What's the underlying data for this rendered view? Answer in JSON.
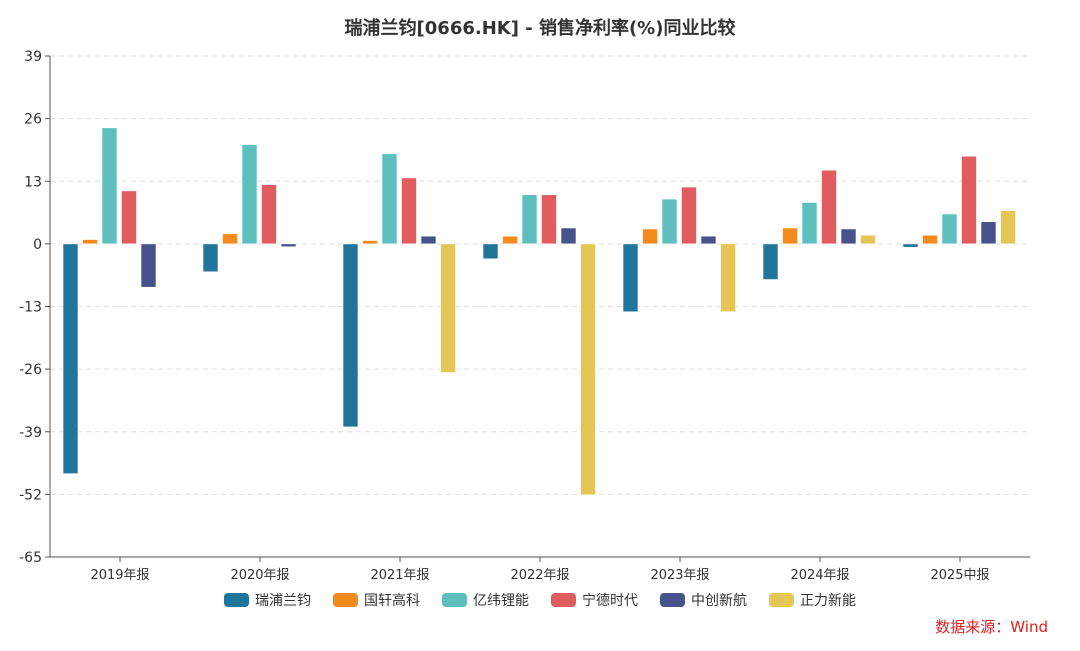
{
  "title": "瑞浦兰钧[0666.HK] - 销售净利率(%)同业比较",
  "source": "数据来源：Wind",
  "chart_data": {
    "type": "bar",
    "title": "瑞浦兰钧[0666.HK] - 销售净利率(%)同业比较",
    "xlabel": "",
    "ylabel": "",
    "ylim": [
      -65,
      39
    ],
    "yticks": [
      39,
      26,
      13,
      0,
      -13,
      -26,
      -39,
      -52,
      -65
    ],
    "grid": true,
    "legend_position": "bottom",
    "categories": [
      "2019年报",
      "2020年报",
      "2021年报",
      "2022年报",
      "2023年报",
      "2024年报",
      "2025中报"
    ],
    "series": [
      {
        "name": "瑞浦兰钧",
        "color": "#21759b",
        "values": [
          -47.7,
          -5.8,
          -38.0,
          -3.1,
          -14.1,
          -7.4,
          -0.7
        ]
      },
      {
        "name": "国轩高科",
        "color": "#f58a1f",
        "values": [
          0.9,
          2.1,
          0.7,
          1.6,
          3.1,
          3.3,
          1.8
        ]
      },
      {
        "name": "亿纬锂能",
        "color": "#5fbfbf",
        "values": [
          24.1,
          20.6,
          18.7,
          10.2,
          9.3,
          8.6,
          6.2
        ]
      },
      {
        "name": "宁德时代",
        "color": "#e05c5f",
        "values": [
          11.0,
          12.3,
          13.7,
          10.2,
          11.8,
          15.3,
          18.2
        ]
      },
      {
        "name": "中创新航",
        "color": "#46528a",
        "values": [
          -9.0,
          -0.6,
          1.6,
          3.3,
          1.6,
          3.1,
          4.6
        ]
      },
      {
        "name": "正力新能",
        "color": "#e5c555",
        "values": [
          null,
          null,
          -26.7,
          -52.1,
          -14.1,
          1.8,
          6.9
        ]
      }
    ]
  }
}
